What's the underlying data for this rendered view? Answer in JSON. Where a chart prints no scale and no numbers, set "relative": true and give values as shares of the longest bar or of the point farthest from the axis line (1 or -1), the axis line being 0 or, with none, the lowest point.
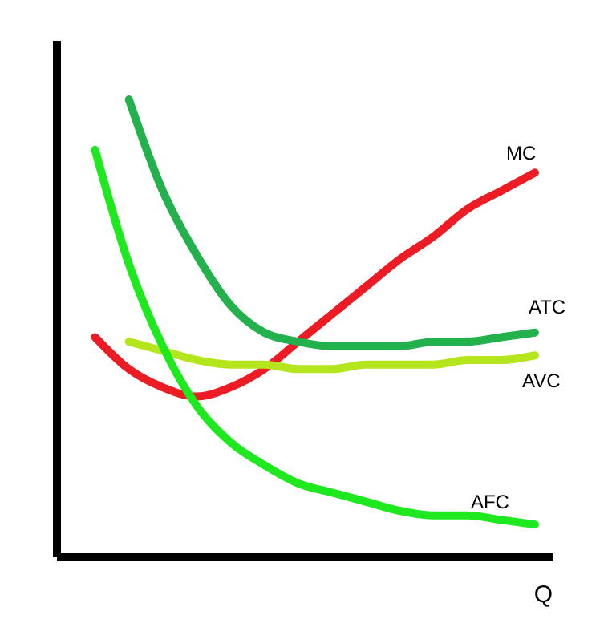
{
  "chart_data": {
    "type": "line",
    "relative": true,
    "xlabel": "Q",
    "categories": [
      null,
      null,
      null,
      null,
      null,
      null,
      null,
      null,
      null,
      null,
      null,
      null,
      null,
      null
    ],
    "series": [
      {
        "name": "MC",
        "color": "#ed1c24",
        "values": [
          0.48,
          0.41,
          0.37,
          0.35,
          0.37,
          0.41,
          0.47,
          0.53,
          0.59,
          0.65,
          0.7,
          0.76,
          0.8,
          0.84
        ]
      },
      {
        "name": "ATC",
        "color": "#22b14c",
        "values": [
          null,
          1.0,
          0.8,
          0.66,
          0.55,
          0.49,
          0.47,
          0.46,
          0.46,
          0.46,
          0.47,
          0.47,
          0.48,
          0.49
        ]
      },
      {
        "name": "AVC",
        "color": "#b5e61d",
        "values": [
          null,
          0.47,
          0.45,
          0.43,
          0.42,
          0.42,
          0.41,
          0.41,
          0.42,
          0.42,
          0.42,
          0.43,
          0.43,
          0.44
        ]
      },
      {
        "name": "AFC",
        "color": "#1ee81e",
        "values": [
          0.89,
          0.64,
          0.46,
          0.33,
          0.25,
          0.2,
          0.16,
          0.14,
          0.12,
          0.1,
          0.09,
          0.09,
          0.08,
          0.07
        ]
      }
    ],
    "marker": "none",
    "grid": false,
    "legend": false
  }
}
